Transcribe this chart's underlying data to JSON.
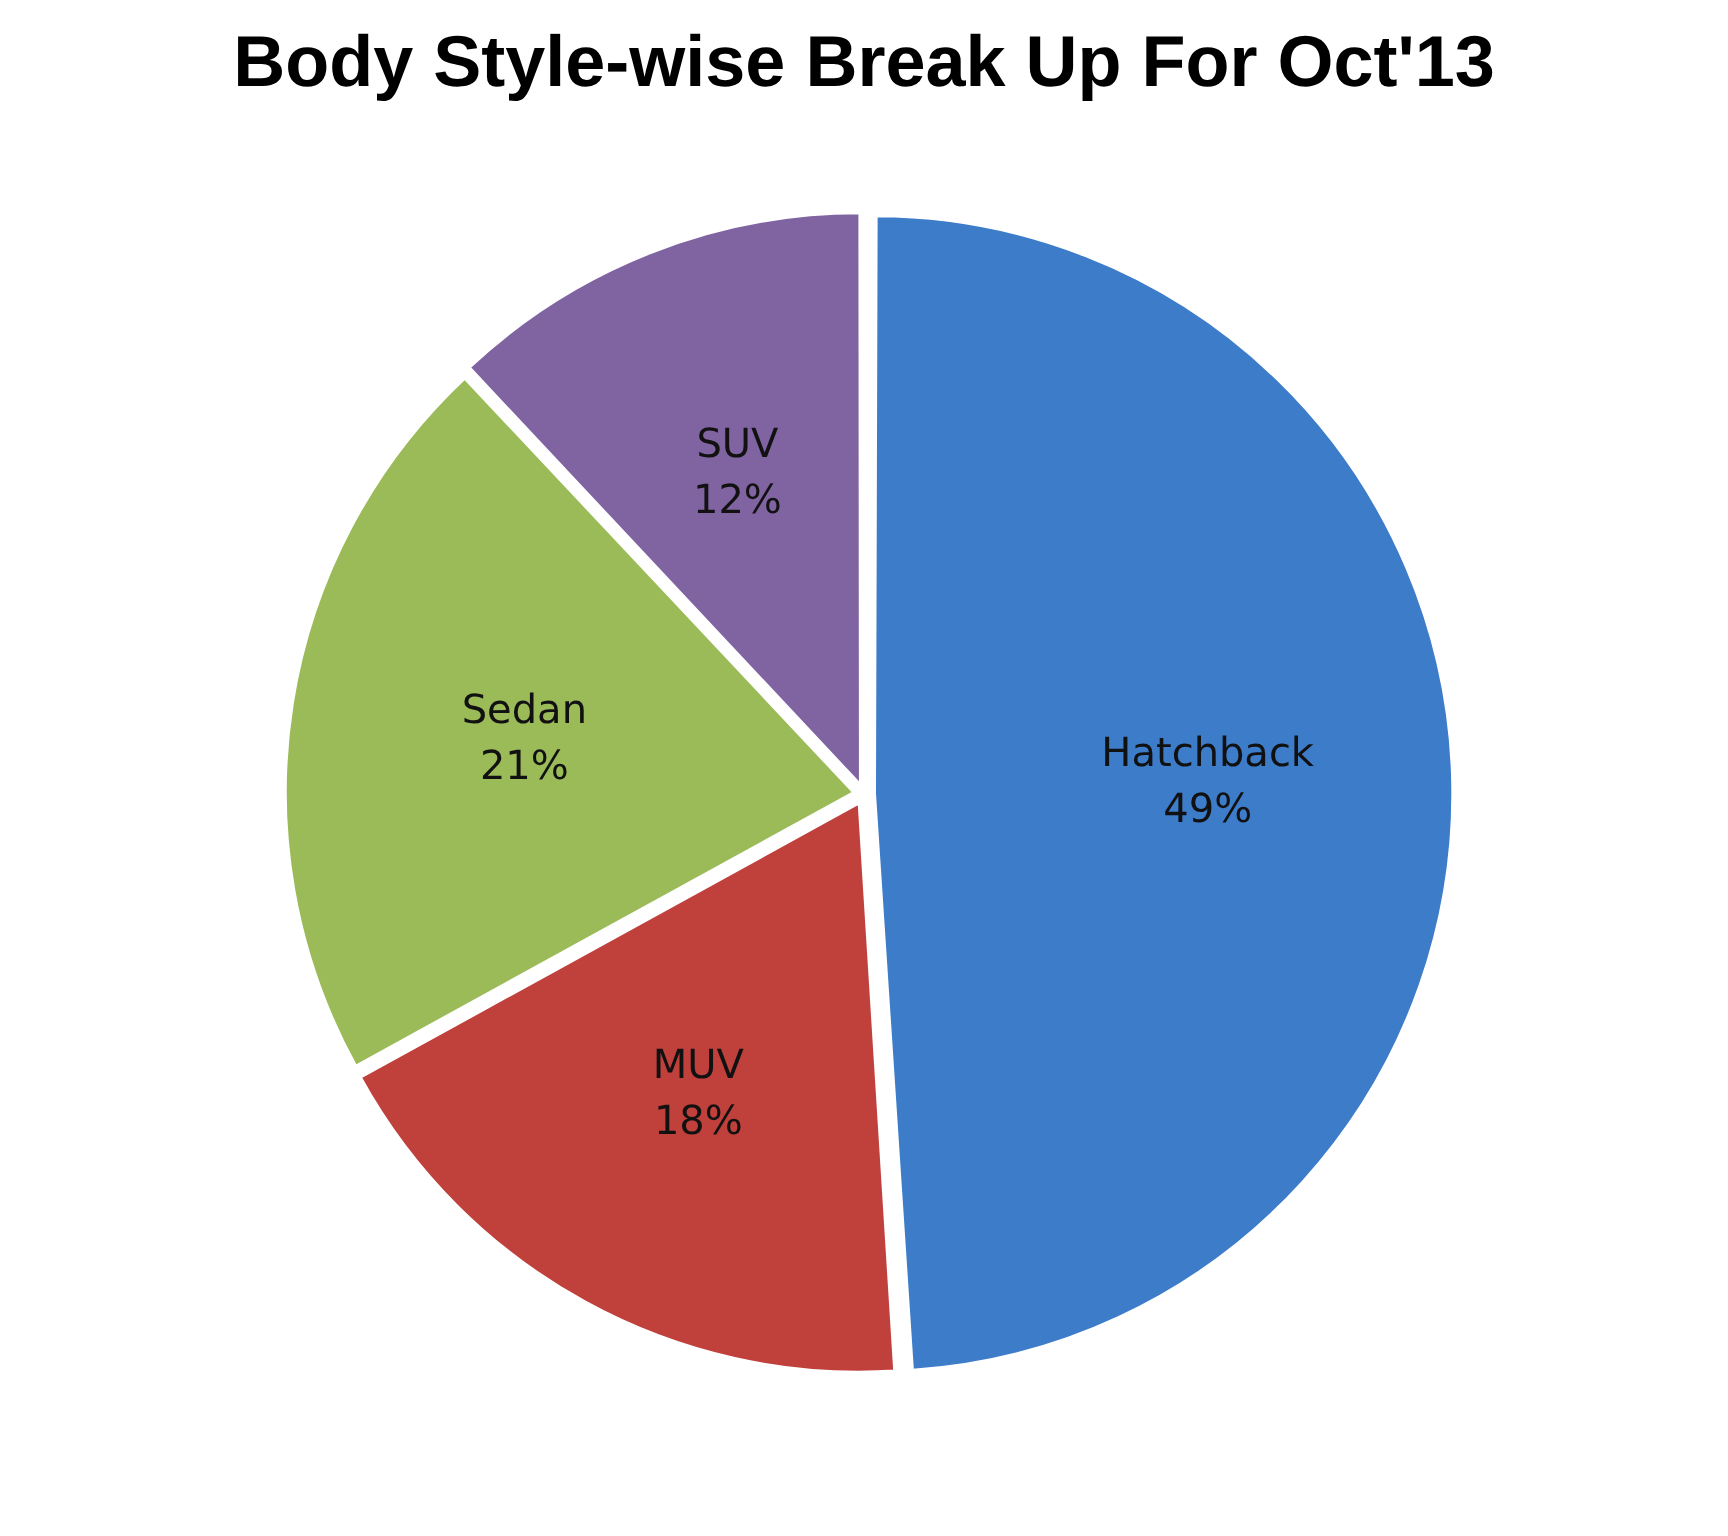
{
  "chart_data": {
    "type": "pie",
    "title": "Body Style-wise Break Up For Oct'13",
    "categories": [
      "Hatchback",
      "MUV",
      "Sedan",
      "SUV"
    ],
    "values": [
      49,
      18,
      21,
      12
    ],
    "colors": [
      "#3d7cc9",
      "#c0403c",
      "#9bbb59",
      "#8064a2"
    ],
    "value_labels": [
      "49%",
      "18%",
      "21%",
      "12%"
    ],
    "legend": false
  }
}
